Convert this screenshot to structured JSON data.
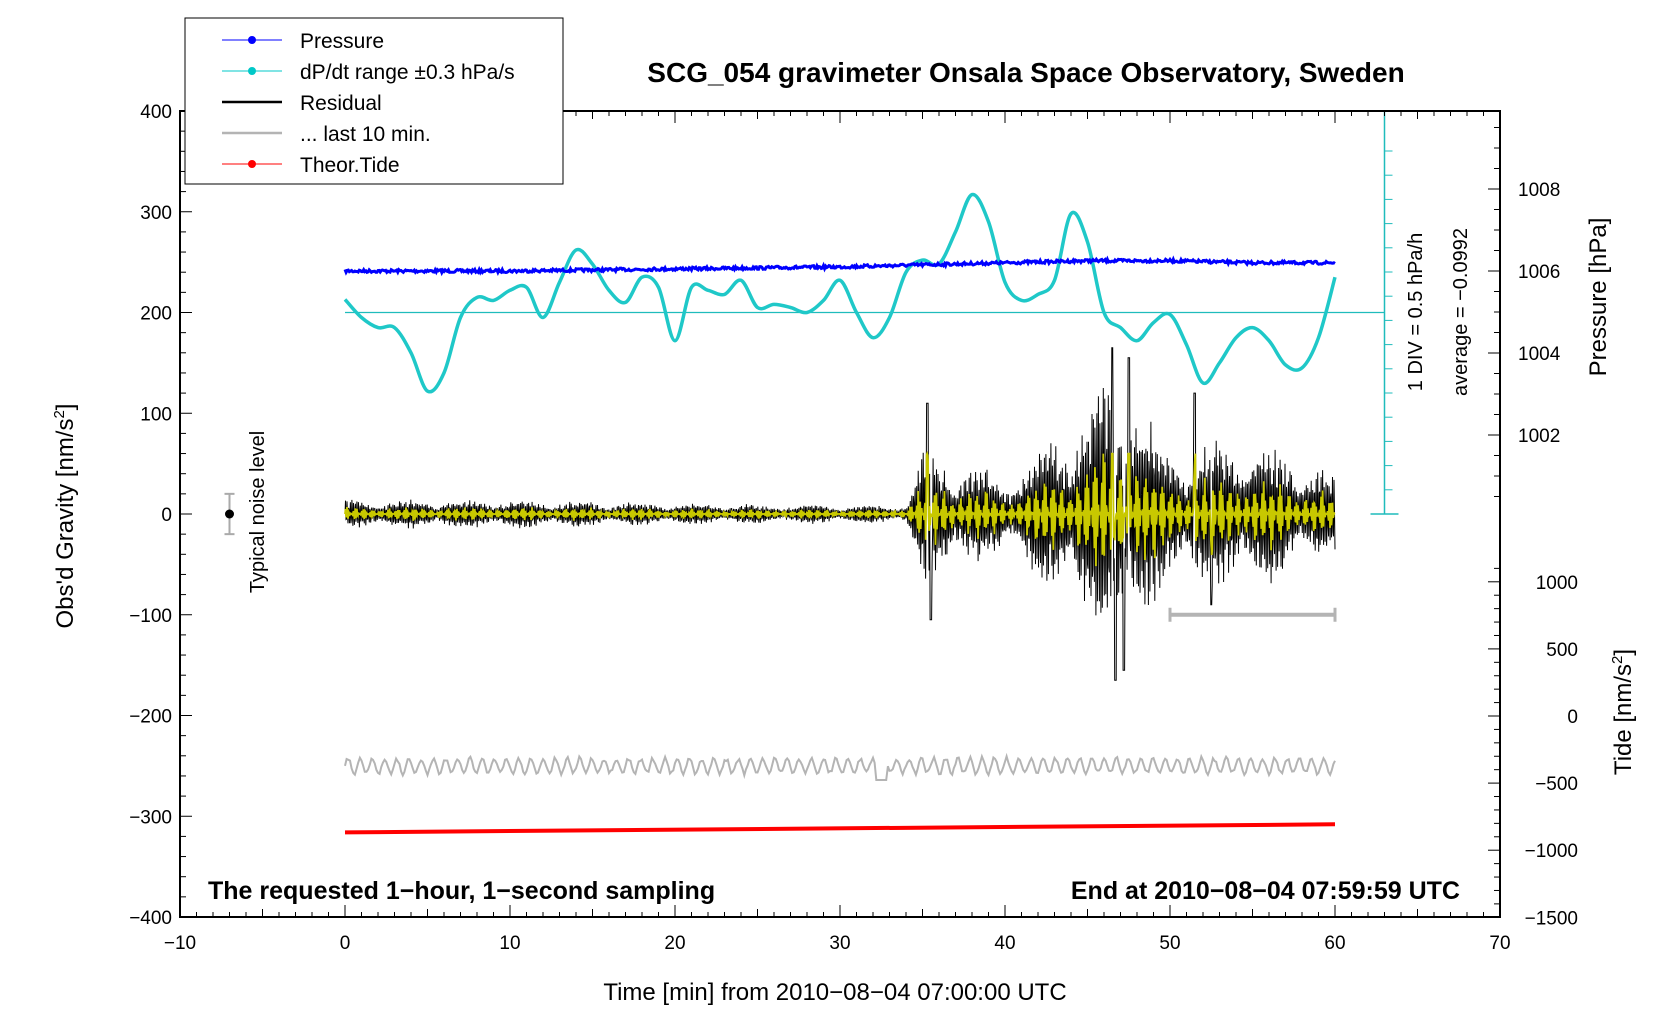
{
  "chart_data": {
    "type": "line",
    "title": "SCG_054 gravimeter Onsala Space Observatory, Sweden",
    "xlabel": "Time [min] from 2010−08−04 07:00:00 UTC",
    "ylabel_left": "Obs'd Gravity [nm/s²]",
    "ylabel_left_main": "Obs'd Gravity [nm/s",
    "ylabel_left_sup": "2",
    "ylabel_left_end": "]",
    "ylabel_right_pressure": "Pressure [hPa]",
    "ylabel_right_tide": "Tide [nm/s²]",
    "ylabel_right_tide_main": "Tide [nm/s",
    "ylabel_right_tide_sup": "2",
    "ylabel_right_tide_end": "]",
    "xlim": [
      -10,
      70
    ],
    "ylim_left": [
      -400,
      400
    ],
    "x_ticks": [
      -10,
      0,
      10,
      20,
      30,
      40,
      50,
      60,
      70
    ],
    "x_tick_labels": [
      "−10",
      "0",
      "10",
      "20",
      "30",
      "40",
      "50",
      "60",
      "70"
    ],
    "y_ticks_left": [
      -400,
      -300,
      -200,
      -100,
      0,
      100,
      200,
      300,
      400
    ],
    "y_tick_labels_left": [
      "−400",
      "−300",
      "−200",
      "−100",
      "0",
      "100",
      "200",
      "300",
      "400"
    ],
    "pressure_ticks": [
      1002,
      1004,
      1006,
      1008
    ],
    "pressure_tick_labels": [
      "1002",
      "1004",
      "1006",
      "1008"
    ],
    "tide_ticks": [
      -1500,
      -1000,
      -500,
      0,
      500,
      1000
    ],
    "tide_tick_labels": [
      "−1500",
      "−1000",
      "−500",
      "0",
      "500",
      "1000"
    ],
    "legend": [
      {
        "name": "Pressure",
        "color": "#0000ff",
        "marker": "dot"
      },
      {
        "name": "dP/dt range ±0.3 hPa/s",
        "color": "#00c8c8",
        "marker": "dot"
      },
      {
        "name": "Residual",
        "color": "#000000",
        "marker": "line"
      },
      {
        "name": "... last 10 min.",
        "color": "#b4b4b4",
        "marker": "line"
      },
      {
        "name": "Theor.Tide",
        "color": "#ff0000",
        "marker": "dot"
      }
    ],
    "series": [
      {
        "name": "Pressure",
        "axis": "pressure",
        "x": [
          0,
          10,
          20,
          30,
          40,
          45,
          50,
          55,
          60
        ],
        "values": [
          1006.0,
          1006.0,
          1006.05,
          1006.1,
          1006.2,
          1006.25,
          1006.25,
          1006.2,
          1006.2
        ]
      },
      {
        "name": "dP/dt range",
        "axis": "left",
        "x": [
          0,
          1,
          2,
          3,
          4,
          5,
          6,
          7,
          8,
          9,
          10,
          11,
          12,
          13,
          14,
          15,
          16,
          17,
          18,
          19,
          20,
          21,
          22,
          23,
          24,
          25,
          26,
          27,
          28,
          29,
          30,
          31,
          32,
          33,
          34,
          35,
          36,
          37,
          38,
          39,
          40,
          41,
          42,
          43,
          44,
          45,
          46,
          47,
          48,
          49,
          50,
          51,
          52,
          53,
          54,
          55,
          56,
          57,
          58,
          59,
          60
        ],
        "values": [
          213,
          195,
          185,
          185,
          160,
          122,
          140,
          195,
          215,
          212,
          222,
          225,
          195,
          230,
          262,
          248,
          222,
          210,
          235,
          225,
          172,
          225,
          222,
          218,
          232,
          205,
          208,
          205,
          200,
          212,
          232,
          200,
          175,
          195,
          240,
          252,
          248,
          280,
          317,
          290,
          230,
          212,
          218,
          232,
          298,
          270,
          200,
          185,
          172,
          190,
          198,
          168,
          130,
          150,
          175,
          185,
          172,
          148,
          145,
          175,
          235
        ]
      },
      {
        "name": "Residual",
        "axis": "left",
        "x_range": [
          0,
          60
        ],
        "envelope": [
          [
            0,
            15
          ],
          [
            10,
            15
          ],
          [
            25,
            10
          ],
          [
            34,
            10
          ],
          [
            35,
            70
          ],
          [
            40,
            40
          ],
          [
            45,
            110
          ],
          [
            47,
            160
          ],
          [
            50,
            70
          ],
          [
            55,
            80
          ],
          [
            60,
            40
          ]
        ],
        "spikes": [
          [
            35.3,
            110
          ],
          [
            35.5,
            -105
          ],
          [
            46.5,
            165
          ],
          [
            46.7,
            -165
          ],
          [
            47.5,
            155
          ],
          [
            47.2,
            -155
          ],
          [
            51.5,
            120
          ],
          [
            52.5,
            -90
          ]
        ]
      },
      {
        "name": "... last 10 min.",
        "axis": "left",
        "x_range": [
          0,
          60
        ],
        "level": -250,
        "amplitude": 8
      },
      {
        "name": "Theor.Tide",
        "axis": "left",
        "x": [
          0,
          60
        ],
        "values": [
          -316,
          -308
        ]
      }
    ],
    "noise_level": {
      "x": -7,
      "center": 0,
      "halfwidth": 20,
      "label": "Typical noise level"
    },
    "dpdt_reference": {
      "value": 200,
      "scale_label": "1 DIV = 0.5 hPa/h",
      "average_label": "average = −0.0992"
    },
    "last10_bar": {
      "x": [
        50,
        60
      ],
      "y": -100
    },
    "annotations": {
      "bottom_left": "The requested 1−hour, 1−second sampling",
      "bottom_right": "End at 2010−08−04 07:59:59 UTC"
    }
  }
}
